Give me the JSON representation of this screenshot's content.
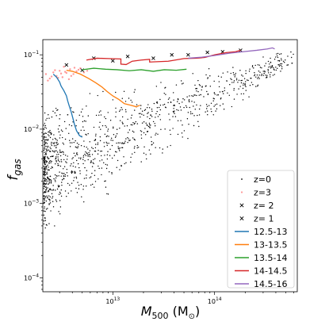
{
  "chart_data": {
    "type": "scatter",
    "xlabel_main": "M",
    "xlabel_sub": "500",
    "xlabel_unit_open": " (M",
    "xlabel_unit_sub": "⊙",
    "xlabel_unit_close": ")",
    "ylabel_main": "f",
    "ylabel_sub": "gas",
    "x_scale": "log",
    "y_scale": "log",
    "xlim": [
      2050000000000.0,
      650000000000000.0
    ],
    "ylim": [
      6.5e-05,
      0.16
    ],
    "x_ticks": [
      {
        "value": 10000000000000.0,
        "base": "10",
        "exp": "13"
      },
      {
        "value": 100000000000000.0,
        "base": "10",
        "exp": "14"
      }
    ],
    "y_ticks": [
      {
        "value": 0.0001,
        "base": "10",
        "exp": "−4"
      },
      {
        "value": 0.001,
        "base": "10",
        "exp": "−3"
      },
      {
        "value": 0.01,
        "base": "10",
        "exp": "−2"
      },
      {
        "value": 0.1,
        "base": "10",
        "exp": "−1"
      }
    ],
    "grid": false,
    "legend_position": "lower-right",
    "series": [
      {
        "name": "z=0",
        "kind": "scatter",
        "marker": "dot",
        "color": "#000000",
        "generated": {
          "count": 1100,
          "x_range": [
            2100000000000.0,
            600000000000000.0
          ],
          "y_at_xmin": [
            0.00025,
            0.03
          ],
          "y_at_xmax": [
            0.06,
            0.14
          ]
        }
      },
      {
        "name": "z=3",
        "kind": "scatter",
        "marker": "dot",
        "color": "#ff9999",
        "points": [
          [
            2200000000000.0,
            0.055
          ],
          [
            2400000000000.0,
            0.048
          ],
          [
            2600000000000.0,
            0.058
          ],
          [
            2800000000000.0,
            0.052
          ],
          [
            3000000000000.0,
            0.061
          ],
          [
            3200000000000.0,
            0.05
          ],
          [
            3500000000000.0,
            0.057
          ],
          [
            3800000000000.0,
            0.064
          ],
          [
            4100000000000.0,
            0.055
          ],
          [
            4400000000000.0,
            0.06
          ],
          [
            4800000000000.0,
            0.066
          ],
          [
            5200000000000.0,
            0.058
          ],
          [
            2300000000000.0,
            0.045
          ],
          [
            2700000000000.0,
            0.062
          ],
          [
            3300000000000.0,
            0.069
          ],
          [
            3900000000000.0,
            0.052
          ],
          [
            4600000000000.0,
            0.063
          ],
          [
            5600000000000.0,
            0.061
          ],
          [
            2500000000000.0,
            0.051
          ],
          [
            3100000000000.0,
            0.056
          ],
          [
            3700000000000.0,
            0.047
          ],
          [
            4200000000000.0,
            0.067
          ],
          [
            2900000000000.0,
            0.049
          ],
          [
            3400000000000.0,
            0.059
          ]
        ]
      },
      {
        "name": "z= 2",
        "kind": "scatter",
        "marker": "x",
        "color": "#000000",
        "points": [
          [
            3500000000000.0,
            0.073
          ],
          [
            6500000000000.0,
            0.09
          ],
          [
            14000000000000.0,
            0.095
          ],
          [
            38000000000000.0,
            0.1
          ],
          [
            85000000000000.0,
            0.108
          ],
          [
            180000000000000.0,
            0.115
          ]
        ]
      },
      {
        "name": "z= 1",
        "kind": "scatter",
        "marker": "x",
        "color": "#000000",
        "points": [
          [
            5000000000000.0,
            0.062
          ],
          [
            10000000000000.0,
            0.083
          ],
          [
            25000000000000.0,
            0.09
          ],
          [
            55000000000000.0,
            0.1
          ],
          [
            120000000000000.0,
            0.11
          ]
        ]
      },
      {
        "name": "12.5-13",
        "kind": "line",
        "color": "#1f77b4",
        "points": [
          [
            2600000000000.0,
            0.055
          ],
          [
            2800000000000.0,
            0.05
          ],
          [
            3000000000000.0,
            0.043
          ],
          [
            3100000000000.0,
            0.038
          ],
          [
            3300000000000.0,
            0.033
          ],
          [
            3500000000000.0,
            0.028
          ],
          [
            3600000000000.0,
            0.024
          ],
          [
            3750000000000.0,
            0.02
          ],
          [
            3900000000000.0,
            0.017
          ],
          [
            4050000000000.0,
            0.014
          ],
          [
            4200000000000.0,
            0.0115
          ],
          [
            4400000000000.0,
            0.0095
          ],
          [
            4700000000000.0,
            0.0082
          ],
          [
            5000000000000.0,
            0.0078
          ]
        ]
      },
      {
        "name": "13-13.5",
        "kind": "line",
        "color": "#ff7f0e",
        "points": [
          [
            3500000000000.0,
            0.062
          ],
          [
            4000000000000.0,
            0.06
          ],
          [
            4800000000000.0,
            0.055
          ],
          [
            5800000000000.0,
            0.048
          ],
          [
            6800000000000.0,
            0.042
          ],
          [
            7800000000000.0,
            0.037
          ],
          [
            8800000000000.0,
            0.032
          ],
          [
            10000000000000.0,
            0.028
          ],
          [
            11500000000000.0,
            0.025
          ],
          [
            13000000000000.0,
            0.022
          ],
          [
            15000000000000.0,
            0.021
          ],
          [
            17000000000000.0,
            0.02
          ],
          [
            18500000000000.0,
            0.021
          ]
        ]
      },
      {
        "name": "13.5-14",
        "kind": "line",
        "color": "#2ca02c",
        "points": [
          [
            5000000000000.0,
            0.063
          ],
          [
            6500000000000.0,
            0.066
          ],
          [
            8500000000000.0,
            0.064
          ],
          [
            11000000000000.0,
            0.063
          ],
          [
            14500000000000.0,
            0.061
          ],
          [
            19000000000000.0,
            0.063
          ],
          [
            25000000000000.0,
            0.06
          ],
          [
            32000000000000.0,
            0.063
          ],
          [
            42000000000000.0,
            0.062
          ],
          [
            53000000000000.0,
            0.064
          ]
        ]
      },
      {
        "name": "14-14.5",
        "kind": "line",
        "color": "#d62728",
        "points": [
          [
            5500000000000.0,
            0.085
          ],
          [
            7000000000000.0,
            0.09
          ],
          [
            9000000000000.0,
            0.089
          ],
          [
            12000000000000.0,
            0.088
          ],
          [
            12000000000000.0,
            0.075
          ],
          [
            13500000000000.0,
            0.074
          ],
          [
            15500000000000.0,
            0.082
          ],
          [
            19000000000000.0,
            0.085
          ],
          [
            23000000000000.0,
            0.087
          ],
          [
            23000000000000.0,
            0.08
          ],
          [
            35000000000000.0,
            0.082
          ],
          [
            50000000000000.0,
            0.089
          ],
          [
            65000000000000.0,
            0.09
          ],
          [
            80000000000000.0,
            0.092
          ],
          [
            100000000000000.0,
            0.1
          ],
          [
            130000000000000.0,
            0.107
          ],
          [
            160000000000000.0,
            0.11
          ],
          [
            180000000000000.0,
            0.115
          ]
        ]
      },
      {
        "name": "14.5-16",
        "kind": "line",
        "color": "#9467bd",
        "points": [
          [
            55000000000000.0,
            0.09
          ],
          [
            75000000000000.0,
            0.093
          ],
          [
            100000000000000.0,
            0.098
          ],
          [
            140000000000000.0,
            0.105
          ],
          [
            190000000000000.0,
            0.11
          ],
          [
            260000000000000.0,
            0.115
          ],
          [
            330000000000000.0,
            0.12
          ],
          [
            370000000000000.0,
            0.124
          ],
          [
            390000000000000.0,
            0.12
          ]
        ]
      }
    ]
  }
}
